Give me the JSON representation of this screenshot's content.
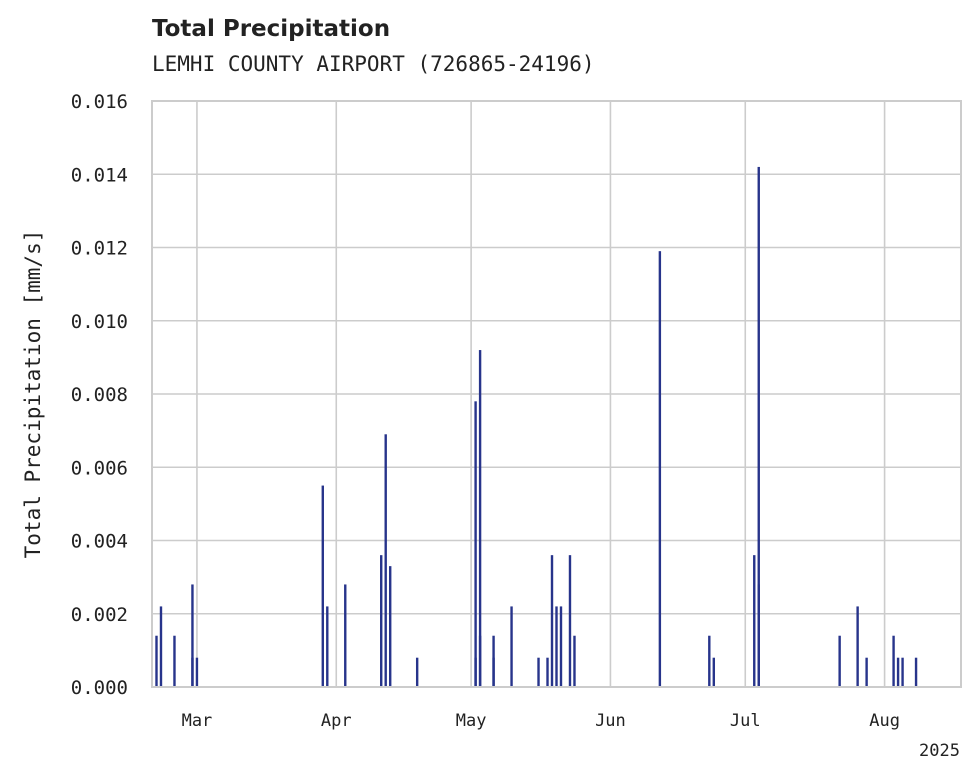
{
  "chart_data": {
    "type": "bar",
    "title": "Total Precipitation",
    "subtitle": "LEMHI COUNTY AIRPORT (726865-24196)",
    "ylabel": "Total Precipitation [mm/s]",
    "xlabel": "",
    "year_label": "2025",
    "ylim": [
      0,
      0.016
    ],
    "y_ticks": [
      "0.000",
      "0.002",
      "0.004",
      "0.006",
      "0.008",
      "0.010",
      "0.012",
      "0.014",
      "0.016"
    ],
    "xlim": [
      "2025-02-19",
      "2025-08-18"
    ],
    "x_ticks": [
      {
        "date": "2025-03-01",
        "label": "Mar"
      },
      {
        "date": "2025-04-01",
        "label": "Apr"
      },
      {
        "date": "2025-05-01",
        "label": "May"
      },
      {
        "date": "2025-06-01",
        "label": "Jun"
      },
      {
        "date": "2025-07-01",
        "label": "Jul"
      },
      {
        "date": "2025-08-01",
        "label": "Aug"
      }
    ],
    "grid": true,
    "bar_color": "#27348b",
    "x": [
      "2025-02-20",
      "2025-02-21",
      "2025-02-24",
      "2025-02-28",
      "2025-02-28",
      "2025-03-01",
      "2025-03-29",
      "2025-03-30",
      "2025-04-03",
      "2025-04-11",
      "2025-04-12",
      "2025-04-13",
      "2025-04-19",
      "2025-05-02",
      "2025-05-02",
      "2025-05-03",
      "2025-05-03",
      "2025-05-06",
      "2025-05-06",
      "2025-05-10",
      "2025-05-16",
      "2025-05-18",
      "2025-05-19",
      "2025-05-20",
      "2025-05-21",
      "2025-05-23",
      "2025-05-24",
      "2025-06-12",
      "2025-06-23",
      "2025-06-24",
      "2025-07-03",
      "2025-07-04",
      "2025-07-04",
      "2025-07-22",
      "2025-07-26",
      "2025-07-28",
      "2025-08-03",
      "2025-08-04",
      "2025-08-05",
      "2025-08-08"
    ],
    "values": [
      0.0014,
      0.0022,
      0.0014,
      0.0008,
      0.0028,
      0.0008,
      0.0055,
      0.0022,
      0.0028,
      0.0036,
      0.0069,
      0.0033,
      0.0008,
      0.0008,
      0.0078,
      0.0092,
      0.0014,
      0.0014,
      0.0008,
      0.0022,
      0.0008,
      0.0008,
      0.0036,
      0.0022,
      0.0022,
      0.0036,
      0.0014,
      0.0119,
      0.0014,
      0.0008,
      0.0036,
      0.0028,
      0.0142,
      0.0014,
      0.0022,
      0.0008,
      0.0014,
      0.0008,
      0.0008,
      0.0008
    ]
  }
}
